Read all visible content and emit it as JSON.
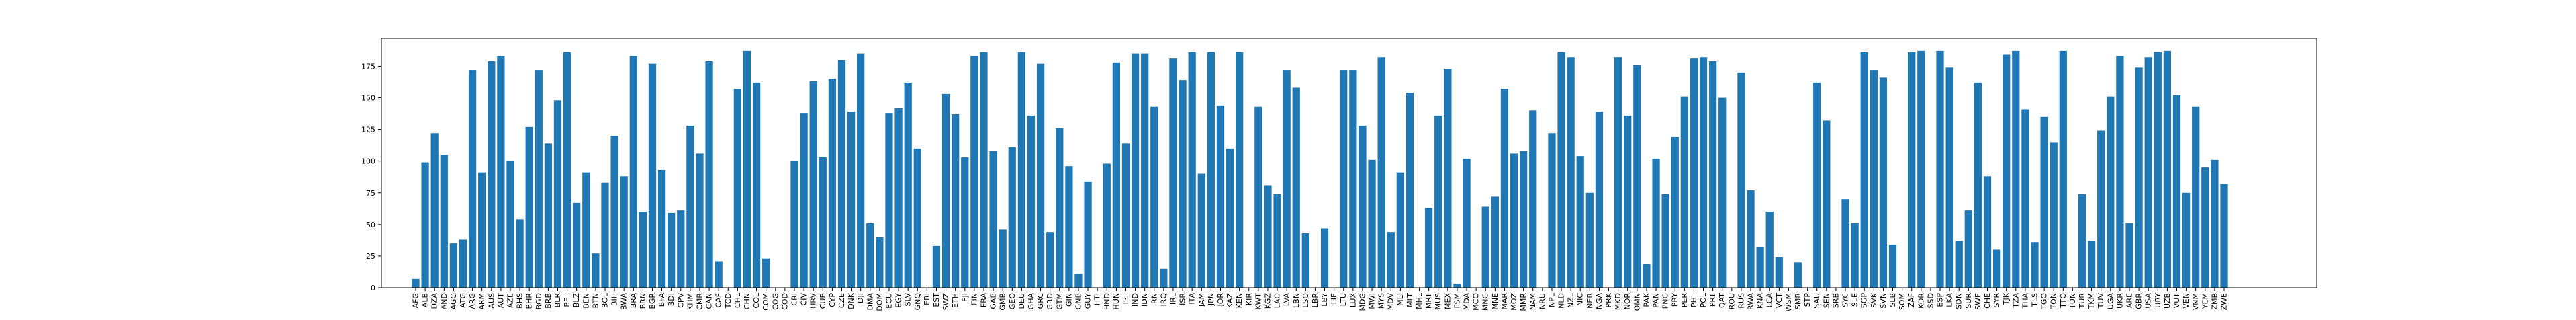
{
  "chart_data": {
    "type": "bar",
    "color": "#1f77b4",
    "categories": [
      "AFG",
      "ALB",
      "DZA",
      "AND",
      "AGO",
      "ATG",
      "ARG",
      "ARM",
      "AUS",
      "AUT",
      "AZE",
      "BHS",
      "BHR",
      "BGD",
      "BRB",
      "BLR",
      "BEL",
      "BLZ",
      "BEN",
      "BTN",
      "BOL",
      "BIH",
      "BWA",
      "BRA",
      "BRN",
      "BGR",
      "BFA",
      "BDI",
      "CPV",
      "KHM",
      "CMR",
      "CAN",
      "CAF",
      "TCD",
      "CHL",
      "CHN",
      "COL",
      "COM",
      "COG",
      "COD",
      "CRI",
      "CIV",
      "HRV",
      "CUB",
      "CYP",
      "CZE",
      "DNK",
      "DJI",
      "DMA",
      "DOM",
      "ECU",
      "EGY",
      "SLV",
      "GNQ",
      "ERI",
      "EST",
      "SWZ",
      "ETH",
      "FJI",
      "FIN",
      "FRA",
      "GAB",
      "GMB",
      "GEO",
      "DEU",
      "GHA",
      "GRC",
      "GRD",
      "GTM",
      "GIN",
      "GNB",
      "GUY",
      "HTI",
      "HND",
      "HUN",
      "ISL",
      "IND",
      "IDN",
      "IRN",
      "IRQ",
      "IRL",
      "ISR",
      "ITA",
      "JAM",
      "JPN",
      "JOR",
      "KAZ",
      "KEN",
      "KIR",
      "KWT",
      "KGZ",
      "LAO",
      "LVA",
      "LBN",
      "LSO",
      "LBR",
      "LBY",
      "LIE",
      "LTU",
      "LUX",
      "MDG",
      "MWI",
      "MYS",
      "MDV",
      "MLI",
      "MLT",
      "MHL",
      "MRT",
      "MUS",
      "MEX",
      "FSM",
      "MDA",
      "MCO",
      "MNG",
      "MNE",
      "MAR",
      "MOZ",
      "MMR",
      "NAM",
      "NRU",
      "NPL",
      "NLD",
      "NZL",
      "NIC",
      "NER",
      "NGA",
      "PRK",
      "MKD",
      "NOR",
      "OMN",
      "PAK",
      "PAN",
      "PNG",
      "PRY",
      "PER",
      "PHL",
      "POL",
      "PRT",
      "QAT",
      "ROU",
      "RUS",
      "RWA",
      "KNA",
      "LCA",
      "VCT",
      "WSM",
      "SMR",
      "STP",
      "SAU",
      "SEN",
      "SRB",
      "SYC",
      "SLE",
      "SGP",
      "SVK",
      "SVN",
      "SLB",
      "SOM",
      "ZAF",
      "KOR",
      "SSD",
      "ESP",
      "LKA",
      "SDN",
      "SUR",
      "SWE",
      "CHE",
      "SYR",
      "TJK",
      "TZA",
      "THA",
      "TLS",
      "TGO",
      "TON",
      "TTO",
      "TUN",
      "TUR",
      "TKM",
      "TUV",
      "UGA",
      "UKR",
      "ARE",
      "GBR",
      "USA",
      "URY",
      "UZB",
      "VUT",
      "VEN",
      "VNM",
      "YEM",
      "ZMB",
      "ZWE"
    ],
    "values": [
      7,
      99,
      122,
      105,
      35,
      38,
      172,
      91,
      179,
      183,
      100,
      54,
      127,
      172,
      114,
      148,
      186,
      67,
      91,
      27,
      83,
      120,
      88,
      183,
      60,
      177,
      93,
      59,
      61,
      128,
      106,
      179,
      21,
      null,
      157,
      187,
      162,
      23,
      null,
      null,
      100,
      138,
      163,
      103,
      165,
      180,
      139,
      185,
      51,
      40,
      138,
      142,
      162,
      110,
      null,
      33,
      153,
      137,
      103,
      183,
      186,
      108,
      46,
      111,
      186,
      136,
      177,
      44,
      126,
      96,
      11,
      84,
      null,
      98,
      178,
      114,
      185,
      185,
      143,
      15,
      181,
      164,
      186,
      90,
      186,
      144,
      110,
      186,
      null,
      143,
      81,
      74,
      172,
      158,
      43,
      null,
      47,
      null,
      172,
      172,
      128,
      101,
      182,
      44,
      91,
      154,
      null,
      63,
      136,
      173,
      3,
      102,
      null,
      64,
      72,
      157,
      106,
      108,
      140,
      null,
      122,
      186,
      182,
      104,
      75,
      139,
      null,
      182,
      136,
      176,
      19,
      102,
      74,
      119,
      151,
      181,
      182,
      179,
      150,
      null,
      170,
      77,
      32,
      60,
      24,
      null,
      20,
      null,
      162,
      132,
      null,
      70,
      51,
      186,
      172,
      166,
      34,
      null,
      186,
      187,
      null,
      187,
      174,
      37,
      61,
      162,
      88,
      30,
      184,
      187,
      141,
      36,
      135,
      115,
      187,
      null,
      74,
      37,
      124,
      151,
      183,
      51,
      174,
      182,
      186,
      187,
      152,
      75,
      143,
      95,
      101,
      82
    ],
    "ylim": [
      0,
      197
    ],
    "yticks": [
      0,
      25,
      50,
      75,
      100,
      125,
      150,
      175
    ]
  }
}
